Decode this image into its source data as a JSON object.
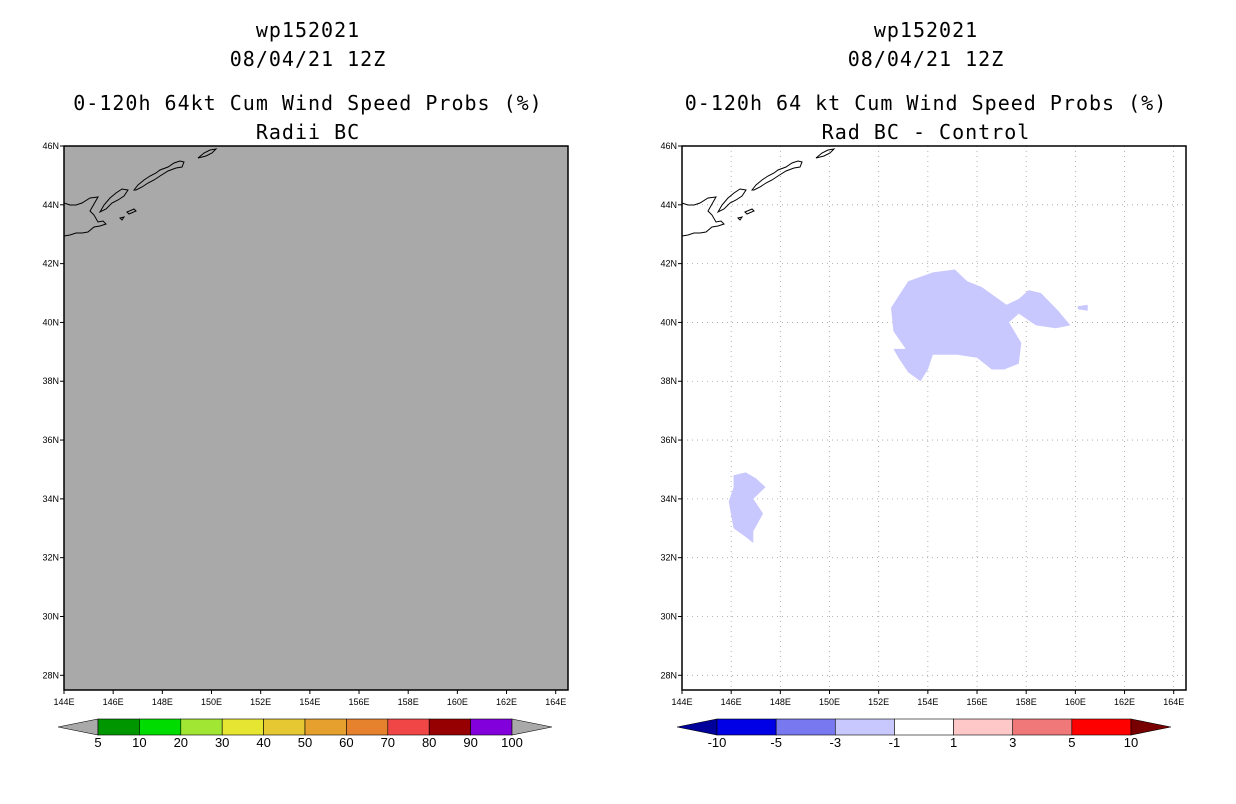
{
  "chart_data": [
    {
      "type": "heatmap",
      "storm_id": "wp152021",
      "datetime": "08/04/21 12Z",
      "title": "0-120h 64kt Cum Wind Speed Probs (%)",
      "subtitle": "Radii BC",
      "x_ticks": [
        "144E",
        "146E",
        "148E",
        "150E",
        "152E",
        "154E",
        "156E",
        "158E",
        "160E",
        "162E",
        "164E"
      ],
      "y_ticks": [
        "28N",
        "30N",
        "32N",
        "34N",
        "36N",
        "38N",
        "40N",
        "42N",
        "44N",
        "46N"
      ],
      "xlim": [
        144,
        164.5
      ],
      "ylim": [
        27.5,
        46
      ],
      "grid": false,
      "field": "no probability above 5% anywhere in domain (uniform gray fill)",
      "fill_color": "#a9a9a9",
      "colorbar": {
        "labels": [
          "5",
          "10",
          "20",
          "30",
          "40",
          "50",
          "60",
          "70",
          "80",
          "90",
          "100"
        ],
        "colors": [
          "#009600",
          "#00dc00",
          "#a0e632",
          "#e6e632",
          "#e6c832",
          "#e6a02d",
          "#e6822d",
          "#f04646",
          "#960000",
          "#8200dc"
        ],
        "end_color": "#a9a9a9"
      }
    },
    {
      "type": "heatmap",
      "storm_id": "wp152021",
      "datetime": "08/04/21 12Z",
      "title": "0-120h 64 kt Cum Wind Speed Probs (%)",
      "subtitle": "Rad BC - Control",
      "x_ticks": [
        "144E",
        "146E",
        "148E",
        "150E",
        "152E",
        "154E",
        "156E",
        "158E",
        "160E",
        "162E",
        "164E"
      ],
      "y_ticks": [
        "28N",
        "30N",
        "32N",
        "34N",
        "36N",
        "38N",
        "40N",
        "42N",
        "44N",
        "46N"
      ],
      "xlim": [
        144,
        164.5
      ],
      "ylim": [
        27.5,
        46
      ],
      "grid": true,
      "regions": [
        {
          "bin": "-3 to -1",
          "color": "#c8c8ff",
          "lonlat": [
            [
              152.5,
              40.5
            ],
            [
              153.2,
              41.4
            ],
            [
              154.2,
              41.7
            ],
            [
              155.1,
              41.8
            ],
            [
              155.6,
              41.4
            ],
            [
              156.2,
              41.2
            ],
            [
              157.2,
              40.6
            ],
            [
              157.7,
              40.8
            ],
            [
              158.1,
              41.1
            ],
            [
              158.6,
              41.0
            ],
            [
              159.3,
              40.4
            ],
            [
              159.8,
              39.9
            ],
            [
              159.2,
              39.8
            ],
            [
              158.4,
              39.9
            ],
            [
              157.7,
              40.3
            ],
            [
              157.3,
              40.0
            ],
            [
              157.8,
              39.3
            ],
            [
              157.7,
              38.6
            ],
            [
              157.1,
              38.4
            ],
            [
              156.6,
              38.4
            ],
            [
              156.0,
              38.8
            ],
            [
              155.2,
              38.9
            ],
            [
              154.7,
              38.9
            ],
            [
              154.2,
              38.9
            ],
            [
              154.0,
              38.4
            ],
            [
              153.7,
              38.0
            ],
            [
              153.2,
              38.3
            ],
            [
              152.8,
              38.8
            ],
            [
              152.6,
              39.1
            ],
            [
              153.1,
              39.1
            ],
            [
              152.6,
              39.7
            ]
          ]
        },
        {
          "bin": "-3 to -1",
          "color": "#c8c8ff",
          "lonlat": [
            [
              160.1,
              40.55
            ],
            [
              160.5,
              40.6
            ],
            [
              160.5,
              40.4
            ],
            [
              160.1,
              40.45
            ]
          ]
        },
        {
          "bin": "-3 to -1",
          "color": "#c8c8ff",
          "lonlat": [
            [
              146.1,
              34.8
            ],
            [
              146.6,
              34.9
            ],
            [
              147.0,
              34.7
            ],
            [
              147.4,
              34.4
            ],
            [
              146.9,
              34.0
            ],
            [
              147.3,
              33.5
            ],
            [
              146.9,
              32.9
            ],
            [
              146.9,
              32.5
            ],
            [
              146.6,
              32.7
            ],
            [
              146.1,
              33.0
            ],
            [
              145.9,
              33.9
            ],
            [
              146.1,
              34.4
            ]
          ]
        }
      ],
      "colorbar": {
        "labels": [
          "-10",
          "-5",
          "-3",
          "-1",
          "1",
          "3",
          "5",
          "10"
        ],
        "colors": [
          "#0000e6",
          "#7878f0",
          "#c8c8ff",
          "#ffffff",
          "#ffc8c8",
          "#f07878",
          "#ff0000"
        ],
        "left_end_color": "#00009b",
        "right_end_color": "#780000"
      }
    }
  ]
}
